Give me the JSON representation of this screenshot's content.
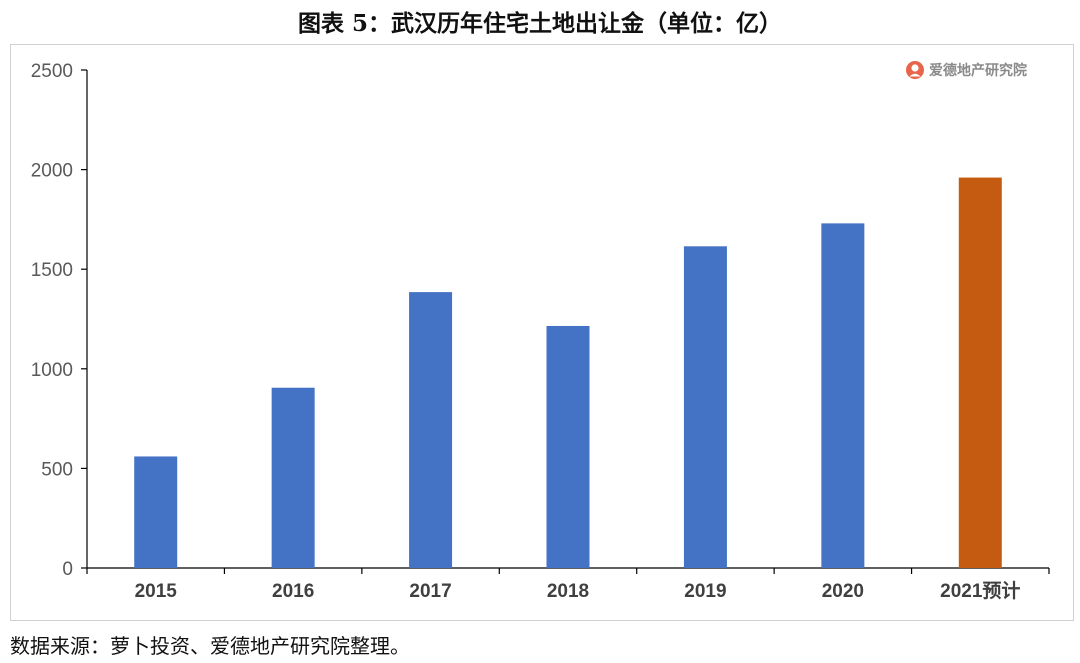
{
  "title": "图表 5：武汉历年住宅土地出让金（单位：亿）",
  "watermark": {
    "text": "爱德地产研究院",
    "icon": "logo-icon",
    "color": "#e8644a"
  },
  "source": "数据来源：萝卜投资、爱德地产研究院整理。",
  "chart_data": {
    "type": "bar",
    "categories": [
      "2015",
      "2016",
      "2017",
      "2018",
      "2019",
      "2020",
      "2021预计"
    ],
    "values": [
      560,
      905,
      1385,
      1215,
      1615,
      1730,
      1960
    ],
    "colors": [
      "#4472c4",
      "#4472c4",
      "#4472c4",
      "#4472c4",
      "#4472c4",
      "#4472c4",
      "#c55a11"
    ],
    "ylim": [
      0,
      2500
    ],
    "yticks": [
      0,
      500,
      1000,
      1500,
      2000,
      2500
    ],
    "grid": false,
    "legend": "none",
    "xlabel": "",
    "ylabel": ""
  }
}
